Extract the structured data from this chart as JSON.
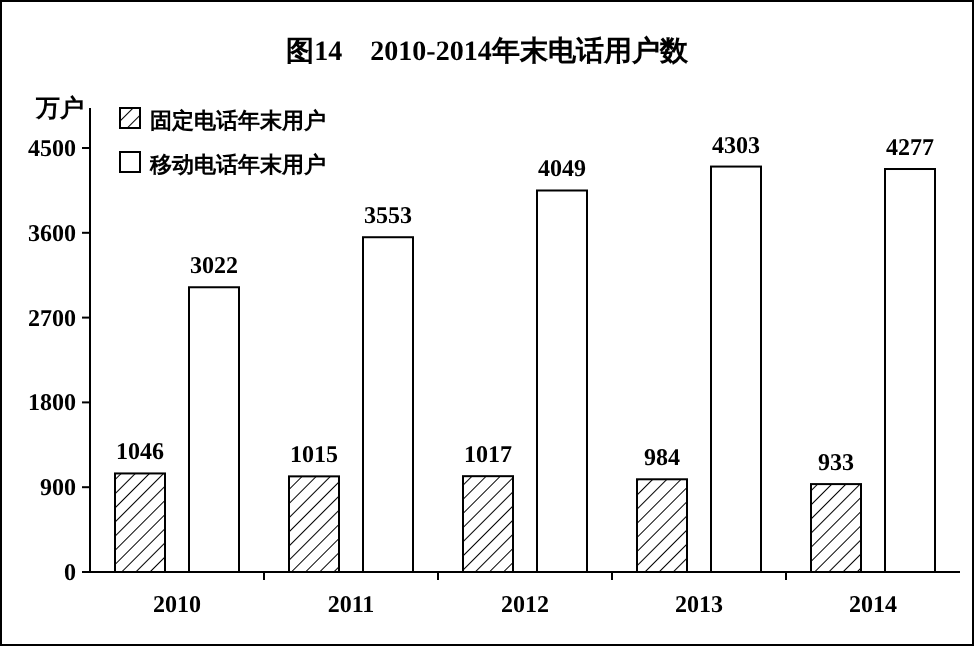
{
  "chart_data": {
    "type": "bar",
    "title": "图14　2010-2014年末电话用户数",
    "ylabel": "万户",
    "categories": [
      "2010",
      "2011",
      "2012",
      "2013",
      "2014"
    ],
    "series": [
      {
        "name": "固定电话年末用户",
        "color": "#000000",
        "values": [
          1046,
          1015,
          1017,
          984,
          933
        ]
      },
      {
        "name": "移动电话年末用户",
        "color": "#ffffff",
        "values": [
          3022,
          3553,
          4049,
          4303,
          4277
        ]
      }
    ],
    "ylim": [
      0,
      4500
    ],
    "yticks": [
      0,
      900,
      1800,
      2700,
      3600,
      4500
    ],
    "data_labels": true,
    "legend": "top left",
    "grid": false
  }
}
